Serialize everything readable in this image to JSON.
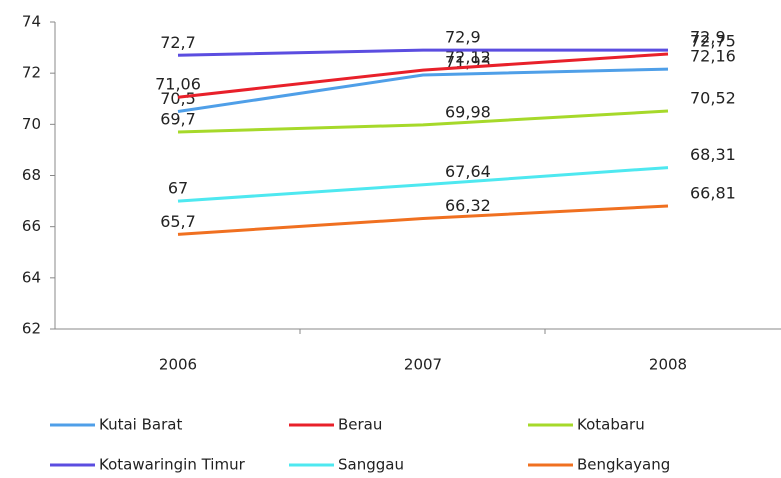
{
  "chart_data": {
    "type": "line",
    "categories": [
      "2006",
      "2007",
      "2008"
    ],
    "ylim": [
      62,
      74
    ],
    "yticks": [
      62,
      64,
      66,
      68,
      70,
      72,
      74
    ],
    "series": [
      {
        "name": "Kutai Barat",
        "color": "#4f9fe8",
        "values": [
          70.5,
          71.93,
          72.16
        ],
        "value_labels": [
          "70,5",
          "71,93",
          "72,16"
        ]
      },
      {
        "name": "Berau",
        "color": "#e8202a",
        "values": [
          71.06,
          72.12,
          72.75
        ],
        "value_labels": [
          "71,06",
          "72,12",
          "72,75"
        ]
      },
      {
        "name": "Kotabaru",
        "color": "#a6d92a",
        "values": [
          69.7,
          69.98,
          70.52
        ],
        "value_labels": [
          "69,7",
          "69,98",
          "70,52"
        ]
      },
      {
        "name": "Kotawaringin Timur",
        "color": "#5b4de0",
        "values": [
          72.7,
          72.9,
          72.9
        ],
        "value_labels": [
          "72,7",
          "72,9",
          "72,9"
        ]
      },
      {
        "name": "Sanggau",
        "color": "#4ee8f0",
        "values": [
          67,
          67.64,
          68.31
        ],
        "value_labels": [
          "67",
          "67,64",
          "68,31"
        ]
      },
      {
        "name": "Bengkayang",
        "color": "#f07020",
        "values": [
          65.7,
          66.32,
          66.81
        ],
        "value_labels": [
          "65,7",
          "66,32",
          "66,81"
        ]
      }
    ]
  }
}
